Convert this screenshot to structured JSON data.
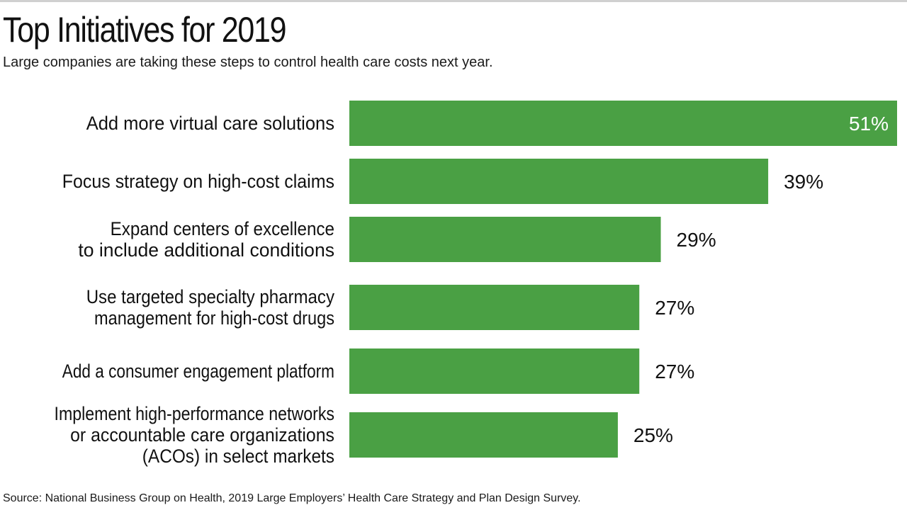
{
  "title": "Top Initiatives for 2019",
  "subtitle": "Large companies are taking these steps to control health care costs next year.",
  "source": "Source: National Business Group on Health, 2019 Large Employers’ Health Care Strategy and Plan Design Survey.",
  "colors": {
    "bar": "#4aa044",
    "inside_label": "#ffffff",
    "outside_label": "#111111"
  },
  "chart_data": {
    "type": "bar",
    "orientation": "horizontal",
    "title": "Top Initiatives for 2019",
    "subtitle": "Large companies are taking these steps to control health care costs next year.",
    "categories": [
      [
        "Add more virtual care solutions"
      ],
      [
        "Focus strategy on high-cost claims"
      ],
      [
        "Expand centers of excellence",
        "to include additional conditions"
      ],
      [
        "Use targeted specialty pharmacy",
        "management for high-cost drugs"
      ],
      [
        "Add a consumer engagement platform"
      ],
      [
        "Implement high-performance networks",
        "or accountable care organizations",
        "(ACOs) in select markets"
      ]
    ],
    "values": [
      51,
      39,
      29,
      27,
      27,
      25
    ],
    "value_labels": [
      "51%",
      "39%",
      "29%",
      "27%",
      "27%",
      "25%"
    ],
    "unit": "%",
    "xlim": [
      0,
      51
    ],
    "grid": false,
    "legend": "none"
  }
}
